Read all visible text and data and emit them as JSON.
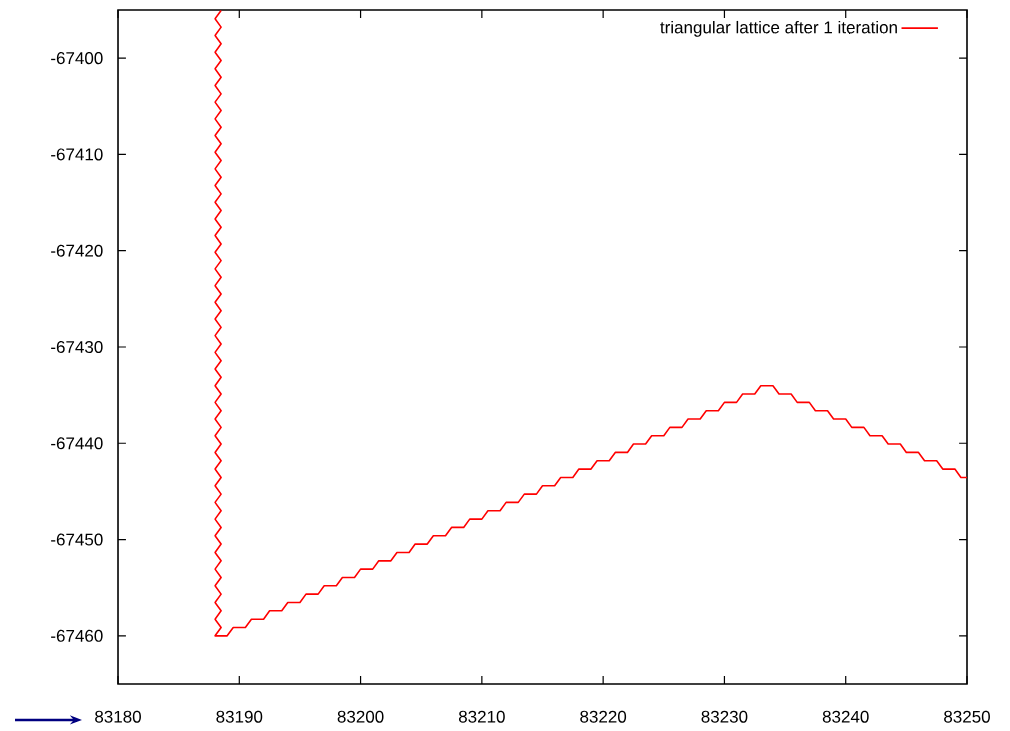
{
  "chart_data": {
    "type": "line",
    "xlim": [
      83180,
      83250
    ],
    "ylim": [
      -67465,
      -67395
    ],
    "xticks": [
      83180,
      83190,
      83200,
      83210,
      83220,
      83230,
      83240,
      83250
    ],
    "yticks": [
      -67460,
      -67450,
      -67440,
      -67430,
      -67420,
      -67410,
      -67400
    ],
    "legend": "top right",
    "series": [
      {
        "name": "triangular lattice after 1 iteration",
        "color": "#ff0000",
        "x": [
          83188.5,
          83188,
          83188.5,
          83188,
          83188.5,
          83188,
          83188.5,
          83188,
          83188.5,
          83188,
          83188.5,
          83188,
          83188.5,
          83188,
          83188.5,
          83188,
          83188.5,
          83188,
          83188.5,
          83188,
          83188.5,
          83188,
          83188.5,
          83188,
          83188.5,
          83188,
          83188.5,
          83188,
          83188.5,
          83188,
          83188.5,
          83188,
          83188.5,
          83188,
          83188.5,
          83188,
          83188.5,
          83188,
          83188.5,
          83188,
          83188.5,
          83188,
          83188.5,
          83188,
          83188.5,
          83188,
          83188.5,
          83188,
          83188.5,
          83188,
          83188.5,
          83188,
          83188.5,
          83188,
          83188.5,
          83188,
          83188.5,
          83188,
          83188.5,
          83188,
          83188.5,
          83188,
          83188.5,
          83188,
          83188.5,
          83188,
          83188.5,
          83188,
          83188.5,
          83188,
          83188.5,
          83188,
          83188.5,
          83188,
          83188.5,
          83188,
          83189,
          83189.5,
          83190.5,
          83191,
          83192,
          83192.5,
          83193.5,
          83194,
          83195,
          83195.5,
          83196.5,
          83197,
          83198,
          83198.5,
          83199.5,
          83200,
          83201,
          83201.5,
          83202.5,
          83203,
          83204,
          83204.5,
          83205.5,
          83206,
          83207,
          83207.5,
          83208.5,
          83209,
          83210,
          83210.5,
          83211.5,
          83212,
          83213,
          83213.5,
          83214.5,
          83215,
          83216,
          83216.5,
          83217.5,
          83218,
          83219,
          83219.5,
          83220.5,
          83221,
          83222,
          83222.5,
          83223.5,
          83224,
          83225,
          83225.5,
          83226.5,
          83227,
          83228,
          83228.5,
          83229.5,
          83230,
          83231,
          83231.5,
          83232.5,
          83233,
          83234,
          83234.5,
          83235.5,
          83236,
          83237,
          83237.5,
          83238.5,
          83239,
          83240,
          83240.5,
          83241.5,
          83242,
          83243,
          83243.5,
          83244.5,
          83245,
          83246,
          83246.5,
          83247.5,
          83248,
          83249,
          83249.5,
          83250
        ],
        "values": [
          -67395.05,
          -67395.91,
          -67396.78,
          -67397.65,
          -67398.51,
          -67399.38,
          -67400.24,
          -67401.11,
          -67401.98,
          -67402.84,
          -67403.71,
          -67404.57,
          -67405.44,
          -67406.31,
          -67407.17,
          -67408.04,
          -67408.9,
          -67409.77,
          -67410.64,
          -67411.5,
          -67412.37,
          -67413.23,
          -67414.1,
          -67414.97,
          -67415.83,
          -67416.7,
          -67417.56,
          -67418.43,
          -67419.3,
          -67420.16,
          -67421.03,
          -67421.89,
          -67422.76,
          -67423.63,
          -67424.49,
          -67425.36,
          -67426.23,
          -67427.09,
          -67427.96,
          -67428.82,
          -67429.69,
          -67430.56,
          -67431.42,
          -67432.29,
          -67433.15,
          -67434.02,
          -67434.89,
          -67435.75,
          -67436.62,
          -67437.48,
          -67438.35,
          -67439.22,
          -67440.08,
          -67440.95,
          -67441.81,
          -67442.68,
          -67443.55,
          -67444.41,
          -67445.28,
          -67446.14,
          -67447.01,
          -67447.88,
          -67448.74,
          -67449.61,
          -67450.47,
          -67451.34,
          -67452.21,
          -67453.07,
          -67453.94,
          -67454.8,
          -67455.67,
          -67456.54,
          -67457.4,
          -67458.27,
          -67459.13,
          -67460.0,
          -67460.0,
          -67459.13,
          -67459.13,
          -67458.27,
          -67458.27,
          -67457.4,
          -67457.4,
          -67456.54,
          -67456.54,
          -67455.67,
          -67455.67,
          -67454.8,
          -67454.8,
          -67453.94,
          -67453.94,
          -67453.07,
          -67453.07,
          -67452.21,
          -67452.21,
          -67451.34,
          -67451.34,
          -67450.47,
          -67450.47,
          -67449.61,
          -67449.61,
          -67448.74,
          -67448.74,
          -67447.88,
          -67447.88,
          -67447.01,
          -67447.01,
          -67446.14,
          -67446.14,
          -67445.28,
          -67445.28,
          -67444.41,
          -67444.41,
          -67443.55,
          -67443.55,
          -67442.68,
          -67442.68,
          -67441.81,
          -67441.81,
          -67440.95,
          -67440.95,
          -67440.08,
          -67440.08,
          -67439.22,
          -67439.22,
          -67438.35,
          -67438.35,
          -67437.48,
          -67437.48,
          -67436.62,
          -67436.62,
          -67435.75,
          -67435.75,
          -67434.89,
          -67434.89,
          -67434.02,
          -67434.02,
          -67434.89,
          -67434.89,
          -67435.75,
          -67435.75,
          -67436.62,
          -67436.62,
          -67437.48,
          -67437.48,
          -67438.35,
          -67438.35,
          -67439.22,
          -67439.22,
          -67440.08,
          -67440.08,
          -67440.95,
          -67440.95,
          -67441.81,
          -67441.81,
          -67442.68,
          -67442.68,
          -67443.55,
          -67443.55
        ]
      }
    ]
  }
}
